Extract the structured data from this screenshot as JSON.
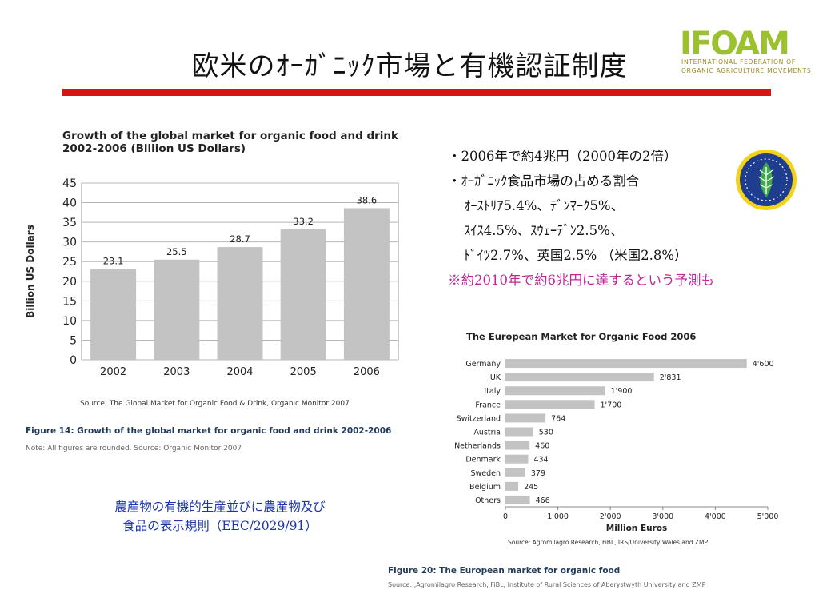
{
  "slide": {
    "title": "欧米のｵｰｶﾞﾆｯｸ市場と有機認証制度",
    "logo": {
      "text": "IFOAM",
      "line1": "INTERNATIONAL FEDERATION OF",
      "line2": "ORGANIC AGRICULTURE MOVEMENTS"
    },
    "bullets": [
      "・2006年で約4兆円（2000年の2倍）",
      "・ｵｰｶﾞﾆｯｸ食品市場の占める割合",
      "ｵｰｽﾄﾘｱ5.4%、ﾃﾞﾝﾏｰｸ5%、",
      "ｽｲｽ4.5%、ｽｳｪｰﾃﾞﾝ2.5%、",
      "ﾄﾞｲﾂ2.7%、英国2.5% （米国2.8%）"
    ],
    "note": "※約2010年で約6兆円に達するという予測も",
    "footnote_left": [
      "農産物の有機的生産並びに農産物及び",
      "食品の表示規則（EEC/2029/91）"
    ],
    "colors": {
      "accent_bar": "#d61414",
      "bar_fill": "#c3c3c3",
      "note": "#c0269a",
      "footnote": "#1c35a8"
    }
  },
  "chart_data": [
    {
      "type": "bar",
      "title": "Growth of the global market for organic food and drink 2002-2006 (Billion US Dollars)",
      "title_lines": [
        "Growth of the global market for organic food and drink",
        "2002-2006 (Billion US Dollars)"
      ],
      "categories": [
        "2002",
        "2003",
        "2004",
        "2005",
        "2006"
      ],
      "values": [
        23.1,
        25.5,
        28.7,
        33.2,
        38.6
      ],
      "value_labels": [
        "23.1",
        "25.5",
        "28.7",
        "33.2",
        "38.6"
      ],
      "xlabel": "",
      "ylabel": "Billion US Dollars",
      "ylim": [
        0,
        45
      ],
      "yticks": [
        0,
        5,
        10,
        15,
        20,
        25,
        30,
        35,
        40,
        45
      ],
      "grid": "horizontal",
      "source": "Source: The Global Market for Organic Food & Drink, Organic Monitor 2007",
      "caption": "Figure 14: Growth of the global market for organic food and drink 2002-2006",
      "caption_note": "Note: All figures are rounded. Source: Organic Monitor 2007"
    },
    {
      "type": "bar",
      "orientation": "horizontal",
      "title": "The European Market for Organic Food 2006",
      "categories": [
        "Germany",
        "UK",
        "Italy",
        "France",
        "Switzerland",
        "Austria",
        "Netherlands",
        "Denmark",
        "Sweden",
        "Belgium",
        "Others"
      ],
      "values": [
        4600,
        2831,
        1900,
        1700,
        764,
        530,
        460,
        434,
        379,
        245,
        466
      ],
      "value_labels": [
        "4'600",
        "2'831",
        "1'900",
        "1'700",
        "764",
        "530",
        "460",
        "434",
        "379",
        "245",
        "466"
      ],
      "xlabel": "Million Euros",
      "ylabel": "",
      "xlim": [
        0,
        5000
      ],
      "xticks": [
        0,
        1000,
        2000,
        3000,
        4000,
        5000
      ],
      "xtick_labels": [
        "0",
        "1'000",
        "2'000",
        "3'000",
        "4'000",
        "5'000"
      ],
      "source": "Source: Agromilagro Research, FiBL, IRS/University Wales and ZMP",
      "caption": "Figure 20: The European market for organic food",
      "caption_note": "Source: ,Agromilagro Research, FiBL, Institute of Rural Sciences of Aberystwyth University and ZMP"
    }
  ]
}
